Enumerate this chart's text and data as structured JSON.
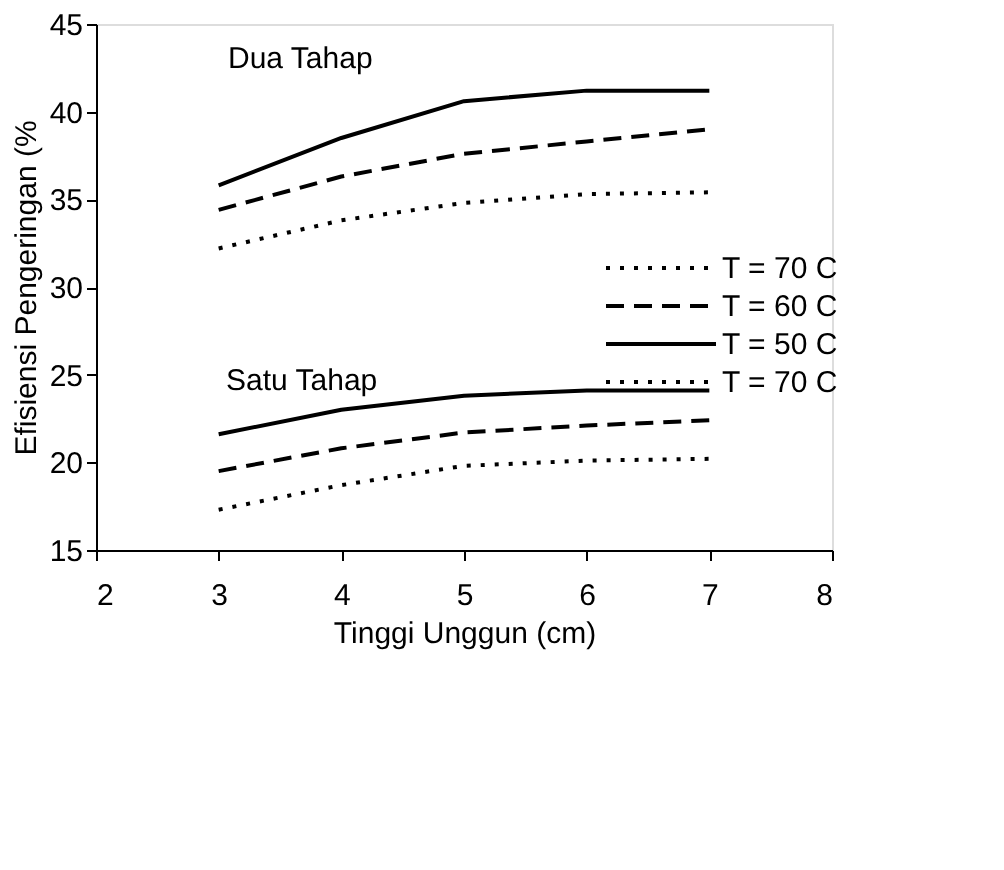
{
  "chart_data": {
    "type": "line",
    "xlabel": "Tinggi Unggun (cm)",
    "ylabel": "Efisiensi Pengeringan (%",
    "xlim": [
      2,
      8
    ],
    "xticks": [
      2,
      3,
      4,
      5,
      6,
      7,
      8
    ],
    "ylim": [
      15,
      45
    ],
    "yticks": [
      15,
      20,
      25,
      30,
      35,
      40,
      45
    ],
    "grid": false,
    "legend": "right",
    "marker": "none",
    "x": [
      3,
      4,
      5,
      6,
      7
    ],
    "series": [
      {
        "name": "T = 70 C",
        "color": "#000000",
        "line_style": "dotted",
        "values": [
          32.2,
          33.8,
          34.8,
          35.3,
          35.4
        ]
      },
      {
        "name": "T = 60 C",
        "color": "#000000",
        "line_style": "dashed",
        "values": [
          34.4,
          36.3,
          37.6,
          38.3,
          39.0
        ]
      },
      {
        "name": "T = 50 C",
        "color": "#000000",
        "line_style": "solid",
        "values": [
          35.8,
          38.5,
          40.6,
          41.2,
          41.2
        ]
      },
      {
        "name": "T = 70 C",
        "color": "#000000",
        "line_style": "dotted",
        "values": [
          17.3,
          18.7,
          19.8,
          20.1,
          20.2
        ]
      },
      {
        "color": "#000000",
        "line_style": "dashed",
        "values": [
          19.5,
          20.8,
          21.7,
          22.1,
          22.4
        ]
      },
      {
        "color": "#000000",
        "line_style": "solid",
        "values": [
          21.6,
          23.0,
          23.8,
          24.1,
          24.1
        ]
      }
    ],
    "annotations": [
      "Dua Tahap",
      "Satu Tahap"
    ]
  }
}
